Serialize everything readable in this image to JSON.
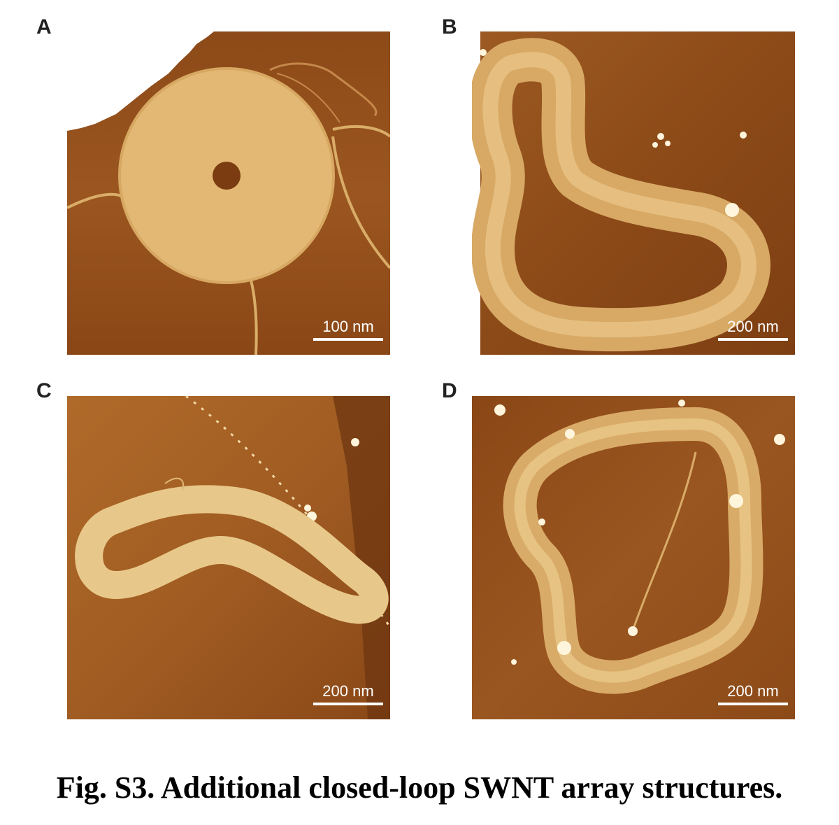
{
  "panels": [
    {
      "label": "A",
      "scale": "100 nm"
    },
    {
      "label": "B",
      "scale": "200 nm"
    },
    {
      "label": "C",
      "scale": "200 nm"
    },
    {
      "label": "D",
      "scale": "200 nm"
    }
  ],
  "caption": "Fig. S3. Additional closed-loop SWNT array structures.",
  "colors": {
    "background_dark": "#7a3e12",
    "background_mid": "#9a5720",
    "structure": "#e2b771",
    "particles": "#fff5dc"
  }
}
